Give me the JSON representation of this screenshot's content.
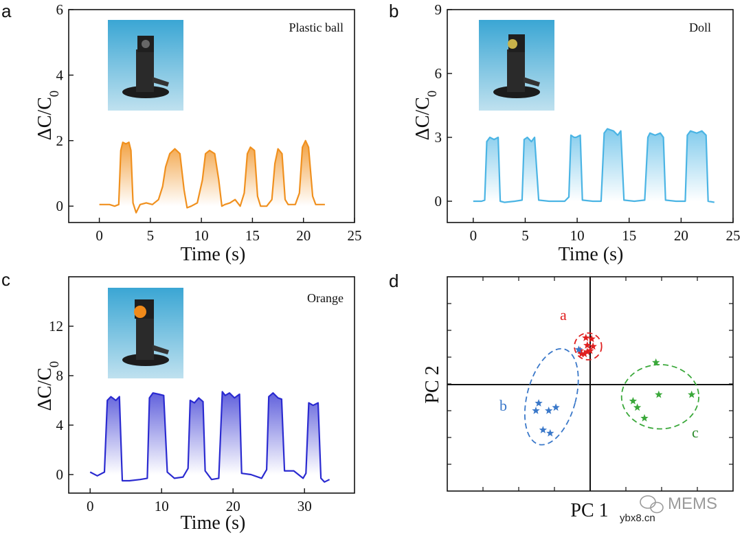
{
  "chart_data": [
    {
      "panel": "a",
      "type": "line",
      "annotation": "Plastic ball",
      "xlabel": "Time (s)",
      "ylabel": "ΔC/C0",
      "xlim": [
        -3,
        25
      ],
      "ylim": [
        -0.5,
        6
      ],
      "xticks": [
        "0",
        "5",
        "10",
        "15",
        "20",
        "25"
      ],
      "yticks": [
        "0",
        "2",
        "4",
        "6"
      ],
      "color": "#f0901e",
      "fill_gradient": true,
      "x": [
        0,
        1,
        1.5,
        1.9,
        2.1,
        2.3,
        2.6,
        2.9,
        3.1,
        3.3,
        3.6,
        4.0,
        4.6,
        5.2,
        5.8,
        6.2,
        6.5,
        6.9,
        7.4,
        7.9,
        8.3,
        8.6,
        9.0,
        9.6,
        10.1,
        10.4,
        10.8,
        11.3,
        11.7,
        12.0,
        12.3,
        12.8,
        13.3,
        13.8,
        14.2,
        14.5,
        14.8,
        15.2,
        15.5,
        15.8,
        16.4,
        16.9,
        17.2,
        17.5,
        17.9,
        18.2,
        18.5,
        19.2,
        19.6,
        19.9,
        20.2,
        20.5,
        20.9,
        21.2,
        21.6,
        22.1
      ],
      "y": [
        0.05,
        0.05,
        0.0,
        0.05,
        1.7,
        1.95,
        1.9,
        1.95,
        1.7,
        0.1,
        -0.2,
        0.05,
        0.1,
        0.05,
        0.2,
        0.6,
        1.2,
        1.6,
        1.75,
        1.6,
        0.5,
        -0.05,
        0.0,
        0.1,
        0.8,
        1.6,
        1.7,
        1.6,
        0.8,
        0.0,
        0.05,
        0.1,
        0.2,
        0.0,
        0.4,
        1.6,
        1.8,
        1.7,
        0.3,
        0.0,
        0.0,
        0.2,
        1.3,
        1.75,
        1.6,
        0.2,
        0.05,
        0.05,
        0.4,
        1.8,
        2.0,
        1.8,
        0.3,
        0.05,
        0.05,
        0.05
      ]
    },
    {
      "panel": "b",
      "type": "line",
      "annotation": "Doll",
      "xlabel": "Time (s)",
      "ylabel": "ΔC/C0",
      "xlim": [
        -2.5,
        25
      ],
      "ylim": [
        -1,
        9
      ],
      "xticks": [
        "0",
        "5",
        "10",
        "15",
        "20",
        "25"
      ],
      "yticks": [
        "0",
        "3",
        "6",
        "9"
      ],
      "color": "#4ab4e4",
      "fill_gradient": true,
      "x": [
        0,
        0.8,
        1.1,
        1.3,
        1.6,
        2.0,
        2.4,
        2.6,
        3.0,
        4.0,
        4.7,
        4.9,
        5.2,
        5.6,
        5.9,
        6.3,
        7.3,
        8.8,
        9.2,
        9.4,
        9.7,
        9.9,
        10.3,
        10.5,
        11.5,
        12.3,
        12.6,
        12.9,
        13.5,
        13.9,
        14.2,
        14.5,
        15.5,
        16.5,
        16.8,
        17.0,
        17.5,
        18.0,
        18.3,
        18.5,
        19.5,
        20.4,
        20.6,
        20.9,
        21.5,
        22.0,
        22.4,
        22.6,
        23.2
      ],
      "y": [
        0,
        0,
        0.05,
        2.8,
        3.0,
        2.9,
        3.0,
        0.0,
        -0.05,
        0.0,
        0.05,
        2.9,
        3.0,
        2.8,
        3.0,
        0.05,
        0.0,
        0.0,
        0.2,
        3.1,
        3.0,
        3.0,
        3.1,
        0.05,
        0.0,
        0.0,
        3.2,
        3.4,
        3.3,
        3.1,
        3.3,
        0.05,
        0.0,
        0.05,
        3.0,
        3.2,
        3.1,
        3.2,
        3.0,
        0.05,
        0.0,
        0.0,
        3.1,
        3.3,
        3.2,
        3.3,
        3.1,
        0.0,
        -0.05
      ]
    },
    {
      "panel": "c",
      "type": "line",
      "annotation": "Orange",
      "xlabel": "Time (s)",
      "ylabel": "ΔC/C0",
      "xlim": [
        -3,
        37
      ],
      "ylim": [
        -1.5,
        16
      ],
      "xticks": [
        "0",
        "10",
        "20",
        "30"
      ],
      "yticks": [
        "0",
        "4",
        "8",
        "12"
      ],
      "color": "#2a2ad0",
      "fill_gradient": true,
      "x": [
        0,
        1,
        2,
        2.4,
        2.9,
        3.6,
        4.1,
        4.5,
        5.5,
        7,
        8.0,
        8.3,
        8.8,
        9.6,
        10.3,
        10.8,
        11.8,
        13.0,
        13.7,
        14.0,
        14.6,
        15.2,
        15.8,
        16.1,
        17.0,
        18.0,
        18.5,
        18.9,
        19.5,
        20.2,
        20.9,
        21.2,
        22.5,
        24.0,
        24.7,
        25.0,
        25.6,
        26.3,
        26.8,
        27.2,
        28.5,
        29.8,
        30.2,
        30.6,
        31.2,
        31.9,
        32.3,
        32.8,
        33.5
      ],
      "y": [
        0.2,
        -0.1,
        0.2,
        6.0,
        6.3,
        6.0,
        6.3,
        -0.5,
        -0.5,
        -0.4,
        -0.3,
        6.2,
        6.6,
        6.5,
        6.4,
        0.2,
        -0.3,
        -0.2,
        0.5,
        6.0,
        5.8,
        6.2,
        5.9,
        0.3,
        -0.4,
        -0.3,
        6.7,
        6.4,
        6.6,
        6.2,
        6.5,
        0.1,
        0.0,
        -0.3,
        0.4,
        6.3,
        6.6,
        6.2,
        6.1,
        0.3,
        0.3,
        -0.3,
        0.1,
        5.8,
        5.6,
        5.8,
        -0.3,
        -0.6,
        -0.4
      ]
    },
    {
      "panel": "d",
      "type": "scatter",
      "xlabel": "PC 1",
      "ylabel": "PC 2",
      "xlim": [
        -1,
        1
      ],
      "ylim": [
        -1,
        1
      ],
      "marker": "star",
      "groups": [
        {
          "label": "a",
          "color": "#e02020",
          "points": [
            [
              -0.03,
              0.43
            ],
            [
              0.01,
              0.42
            ],
            [
              -0.02,
              0.36
            ],
            [
              0.02,
              0.35
            ],
            [
              -0.06,
              0.28
            ],
            [
              -0.04,
              0.28
            ],
            [
              -0.02,
              0.3
            ],
            [
              0.0,
              0.31
            ],
            [
              -0.07,
              0.31
            ]
          ]
        },
        {
          "label": "b",
          "color": "#3a78c9",
          "points": [
            [
              -0.36,
              -0.18
            ],
            [
              -0.24,
              -0.22
            ],
            [
              -0.38,
              -0.25
            ],
            [
              -0.29,
              -0.25
            ],
            [
              -0.33,
              -0.43
            ],
            [
              -0.28,
              -0.46
            ],
            [
              -0.08,
              0.32
            ]
          ]
        },
        {
          "label": "c",
          "color": "#3aa83a",
          "points": [
            [
              0.46,
              0.2
            ],
            [
              0.48,
              -0.1
            ],
            [
              0.71,
              -0.1
            ],
            [
              0.3,
              -0.16
            ],
            [
              0.33,
              -0.22
            ],
            [
              0.38,
              -0.32
            ]
          ]
        }
      ],
      "ellipses": [
        {
          "group": "a",
          "center": [
            -0.015,
            0.35
          ],
          "rx": 0.095,
          "ry": 0.125,
          "rotation": 0
        },
        {
          "group": "b",
          "center": [
            -0.27,
            -0.12
          ],
          "rx": 0.17,
          "ry": 0.46,
          "rotation": 15
        },
        {
          "group": "c",
          "center": [
            0.49,
            -0.12
          ],
          "rx": 0.27,
          "ry": 0.3,
          "rotation": 0
        }
      ]
    }
  ],
  "panel_letters": [
    "a",
    "b",
    "c",
    "d"
  ],
  "watermark": {
    "brand": "MEMS",
    "site": "ybx8.cn"
  }
}
